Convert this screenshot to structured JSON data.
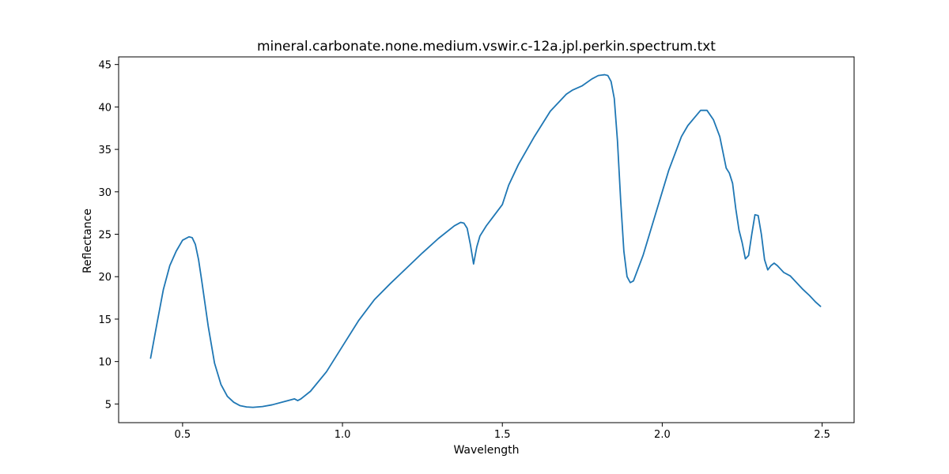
{
  "chart_data": {
    "type": "line",
    "title": "mineral.carbonate.none.medium.vswir.c-12a.jpl.perkin.spectrum.txt",
    "xlabel": "Wavelength",
    "ylabel": "Reflectance",
    "xlim": [
      0.3,
      2.6
    ],
    "ylim": [
      2.8,
      45.9
    ],
    "xticks": [
      0.5,
      1.0,
      1.5,
      2.0,
      2.5
    ],
    "xtick_labels": [
      "0.5",
      "1.0",
      "1.5",
      "2.0",
      "2.5"
    ],
    "yticks": [
      5,
      10,
      15,
      20,
      25,
      30,
      35,
      40,
      45
    ],
    "ytick_labels": [
      "5",
      "10",
      "15",
      "20",
      "25",
      "30",
      "35",
      "40",
      "45"
    ],
    "grid": false,
    "series": [
      {
        "color": "#1f77b4",
        "x": [
          0.4,
          0.42,
          0.44,
          0.46,
          0.48,
          0.5,
          0.52,
          0.53,
          0.54,
          0.55,
          0.56,
          0.58,
          0.6,
          0.62,
          0.64,
          0.66,
          0.68,
          0.7,
          0.72,
          0.75,
          0.78,
          0.82,
          0.85,
          0.86,
          0.87,
          0.9,
          0.95,
          1.0,
          1.05,
          1.1,
          1.15,
          1.2,
          1.25,
          1.3,
          1.35,
          1.37,
          1.38,
          1.39,
          1.4,
          1.41,
          1.42,
          1.43,
          1.45,
          1.47,
          1.5,
          1.52,
          1.55,
          1.6,
          1.65,
          1.7,
          1.72,
          1.75,
          1.78,
          1.8,
          1.82,
          1.83,
          1.84,
          1.85,
          1.86,
          1.87,
          1.88,
          1.89,
          1.9,
          1.91,
          1.92,
          1.94,
          1.96,
          1.98,
          2.0,
          2.02,
          2.04,
          2.06,
          2.08,
          2.1,
          2.12,
          2.14,
          2.16,
          2.18,
          2.2,
          2.21,
          2.22,
          2.23,
          2.24,
          2.25,
          2.26,
          2.27,
          2.28,
          2.29,
          2.3,
          2.31,
          2.32,
          2.33,
          2.34,
          2.35,
          2.36,
          2.37,
          2.38,
          2.4,
          2.42,
          2.44,
          2.46,
          2.48,
          2.495
        ],
        "y": [
          10.4,
          14.5,
          18.5,
          21.3,
          23.0,
          24.3,
          24.7,
          24.6,
          23.8,
          22.0,
          19.5,
          14.2,
          9.8,
          7.3,
          5.9,
          5.2,
          4.8,
          4.65,
          4.6,
          4.7,
          4.9,
          5.3,
          5.6,
          5.4,
          5.6,
          6.5,
          8.8,
          11.8,
          14.8,
          17.3,
          19.2,
          21.0,
          22.8,
          24.5,
          26.0,
          26.4,
          26.3,
          25.7,
          23.8,
          21.5,
          23.5,
          24.8,
          26.0,
          27.0,
          28.5,
          30.8,
          33.2,
          36.5,
          39.5,
          41.5,
          42.0,
          42.5,
          43.3,
          43.7,
          43.8,
          43.7,
          43.0,
          41.0,
          36.0,
          29.0,
          23.0,
          20.0,
          19.3,
          19.5,
          20.5,
          22.5,
          25.0,
          27.5,
          30.0,
          32.5,
          34.5,
          36.5,
          37.8,
          38.7,
          39.6,
          39.6,
          38.5,
          36.5,
          32.8,
          32.2,
          31.0,
          28.0,
          25.5,
          24.0,
          22.1,
          22.5,
          25.0,
          27.3,
          27.2,
          25.0,
          22.0,
          20.8,
          21.3,
          21.6,
          21.3,
          20.9,
          20.5,
          20.1,
          19.3,
          18.5,
          17.8,
          17.0,
          16.5
        ]
      }
    ]
  }
}
